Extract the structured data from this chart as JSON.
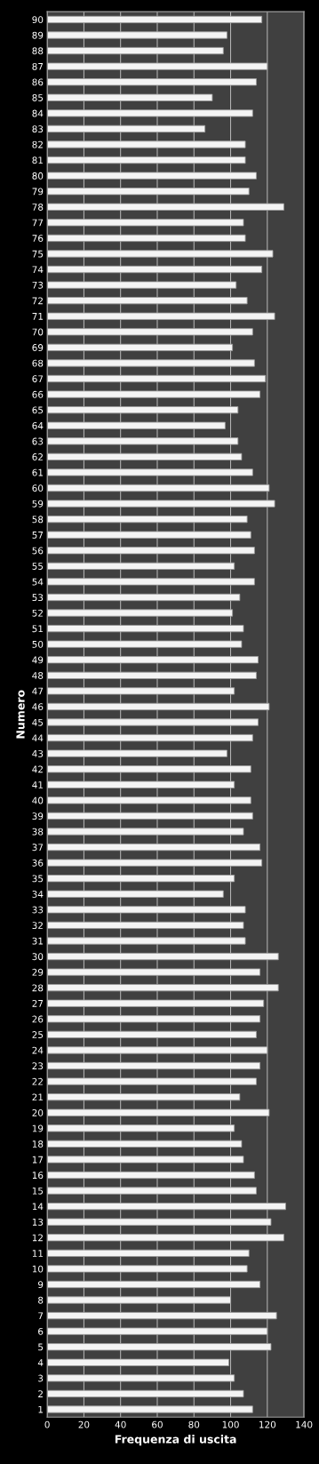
{
  "chart_data": {
    "type": "bar",
    "orientation": "horizontal",
    "xlabel": "Frequenza di uscita",
    "ylabel": "Numero",
    "categories": [
      "90",
      "89",
      "88",
      "87",
      "86",
      "85",
      "84",
      "83",
      "82",
      "81",
      "80",
      "79",
      "78",
      "77",
      "76",
      "75",
      "74",
      "73",
      "72",
      "71",
      "70",
      "69",
      "68",
      "67",
      "66",
      "65",
      "64",
      "63",
      "62",
      "61",
      "60",
      "59",
      "58",
      "57",
      "56",
      "55",
      "54",
      "53",
      "52",
      "51",
      "50",
      "49",
      "48",
      "47",
      "46",
      "45",
      "44",
      "43",
      "42",
      "41",
      "40",
      "39",
      "38",
      "37",
      "36",
      "35",
      "34",
      "33",
      "32",
      "31",
      "30",
      "29",
      "28",
      "27",
      "26",
      "25",
      "24",
      "23",
      "22",
      "21",
      "20",
      "19",
      "18",
      "17",
      "16",
      "15",
      "14",
      "13",
      "12",
      "11",
      "10",
      "9",
      "8",
      "7",
      "6",
      "5",
      "4",
      "3",
      "2",
      "1"
    ],
    "values": [
      117,
      98,
      96,
      120,
      114,
      90,
      112,
      86,
      108,
      108,
      114,
      110,
      129,
      107,
      108,
      123,
      117,
      103,
      109,
      124,
      112,
      101,
      113,
      119,
      116,
      104,
      97,
      104,
      106,
      112,
      121,
      124,
      109,
      111,
      113,
      102,
      113,
      105,
      101,
      107,
      106,
      115,
      114,
      102,
      121,
      115,
      112,
      98,
      111,
      102,
      111,
      112,
      107,
      116,
      117,
      102,
      96,
      108,
      107,
      108,
      126,
      116,
      126,
      118,
      116,
      114,
      120,
      116,
      114,
      105,
      121,
      102,
      106,
      107,
      113,
      114,
      130,
      122,
      129,
      110,
      109,
      116,
      100,
      125,
      120,
      122,
      99,
      102,
      107,
      112
    ],
    "color": "#f4f4f4",
    "xlim": [
      0,
      140
    ],
    "xticks": [
      0,
      20,
      40,
      60,
      80,
      100,
      120,
      140
    ],
    "grid": "x"
  }
}
